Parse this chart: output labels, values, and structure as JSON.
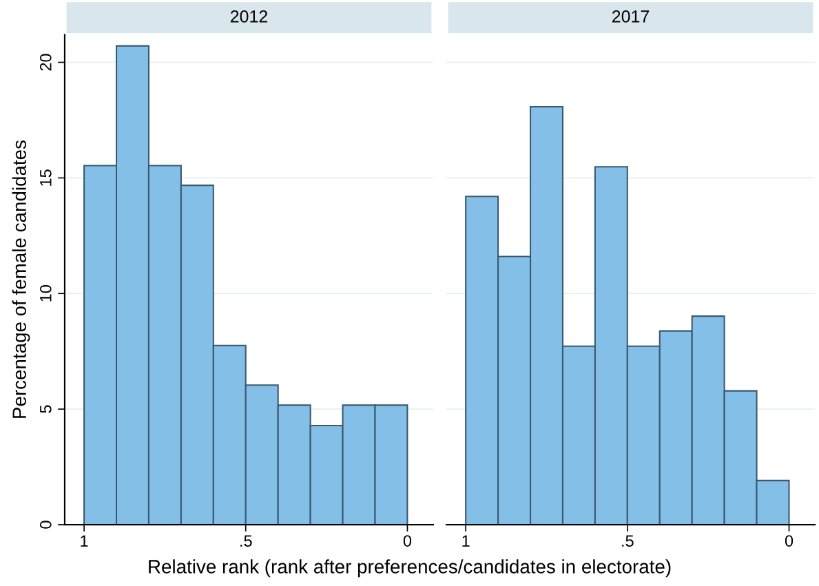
{
  "chart_data": [
    {
      "type": "histogram",
      "title": "2012",
      "ylabel": "Percentage of female candidates",
      "xlabel": "Relative rank (rank after preferences/candidates in electorate)",
      "bins": [
        1,
        0.9,
        0.8,
        0.7,
        0.6,
        0.5,
        0.4,
        0.3,
        0.2,
        0.1,
        0
      ],
      "values": [
        15.53,
        20.71,
        15.53,
        14.68,
        7.75,
        6.04,
        5.17,
        4.29,
        5.17,
        5.17
      ],
      "color": "#84bfe8",
      "xlim": [
        1.06,
        -0.08
      ],
      "xticks": [
        1,
        {
          "value": 0.5,
          "label": ".5"
        },
        0
      ],
      "ylim": [
        0,
        21.2
      ],
      "yticks": [
        0,
        5,
        10,
        15,
        20
      ],
      "grid": "y"
    },
    {
      "type": "histogram",
      "title": "2017",
      "bins": [
        1,
        0.9,
        0.8,
        0.7,
        0.6,
        0.5,
        0.4,
        0.3,
        0.2,
        0.1,
        0
      ],
      "values": [
        14.2,
        11.6,
        18.08,
        7.72,
        15.48,
        7.72,
        8.38,
        9.02,
        5.79,
        1.91
      ],
      "color": "#84bfe8",
      "xlim": [
        1.06,
        -0.08
      ],
      "xticks": [
        1,
        {
          "value": 0.5,
          "label": ".5"
        },
        0
      ],
      "yticks": [
        0,
        5,
        10,
        15,
        20
      ],
      "grid": "y",
      "tick_labels": "x"
    }
  ]
}
